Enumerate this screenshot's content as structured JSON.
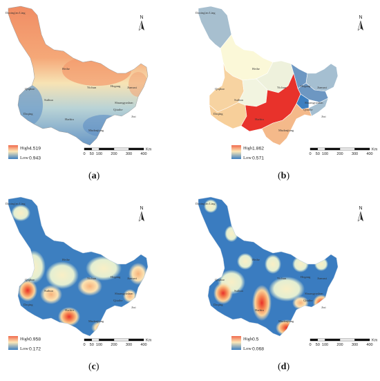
{
  "panels": [
    {
      "id": "a",
      "caption_letter": "a",
      "legend": {
        "high_label": "High",
        "high_value": "4.519",
        "low_label": "Low",
        "low_value": "0.943",
        "high_color": "#f06a4d",
        "low_color": "#3d7fc0"
      },
      "style": "continuous"
    },
    {
      "id": "b",
      "caption_letter": "b",
      "legend": {
        "high_label": "High",
        "high_value": "1.862",
        "low_label": "Low",
        "low_value": "0.571",
        "high_color": "#f06a4d",
        "low_color": "#3d7fc0"
      },
      "style": "choropleth"
    },
    {
      "id": "c",
      "caption_letter": "c",
      "legend": {
        "high_label": "High",
        "high_value": "0.958",
        "low_label": "Low",
        "low_value": "0.172",
        "high_color": "#f06a4d",
        "low_color": "#3d7fc0"
      },
      "style": "hotspot"
    },
    {
      "id": "d",
      "caption_letter": "d",
      "legend": {
        "high_label": "High",
        "high_value": "0.5",
        "low_label": "Low",
        "low_value": "0.068",
        "high_color": "#f06a4d",
        "low_color": "#3d7fc0"
      },
      "style": "hotspot2"
    }
  ],
  "cities": [
    {
      "name": "Daxing'an Ling",
      "key": "daxinganling"
    },
    {
      "name": "Heihe",
      "key": "heihe"
    },
    {
      "name": "Qiqihar",
      "key": "qiqihar"
    },
    {
      "name": "Yichun",
      "key": "yichun"
    },
    {
      "name": "Hegang",
      "key": "hegang"
    },
    {
      "name": "Jiamusi",
      "key": "jiamusi"
    },
    {
      "name": "Suihua",
      "key": "suihua"
    },
    {
      "name": "Shuangyashan",
      "key": "shuangyashan"
    },
    {
      "name": "Daqing",
      "key": "daqing"
    },
    {
      "name": "Qitaihe",
      "key": "qitaihe"
    },
    {
      "name": "Harbin",
      "key": "harbin"
    },
    {
      "name": "Jixi",
      "key": "jixi"
    },
    {
      "name": "Mudanjiang",
      "key": "mudanjiang"
    }
  ],
  "north_label": "N",
  "scale": {
    "ticks": [
      "0",
      "50",
      "100",
      "200",
      "300",
      "400"
    ],
    "unit": "Km"
  }
}
